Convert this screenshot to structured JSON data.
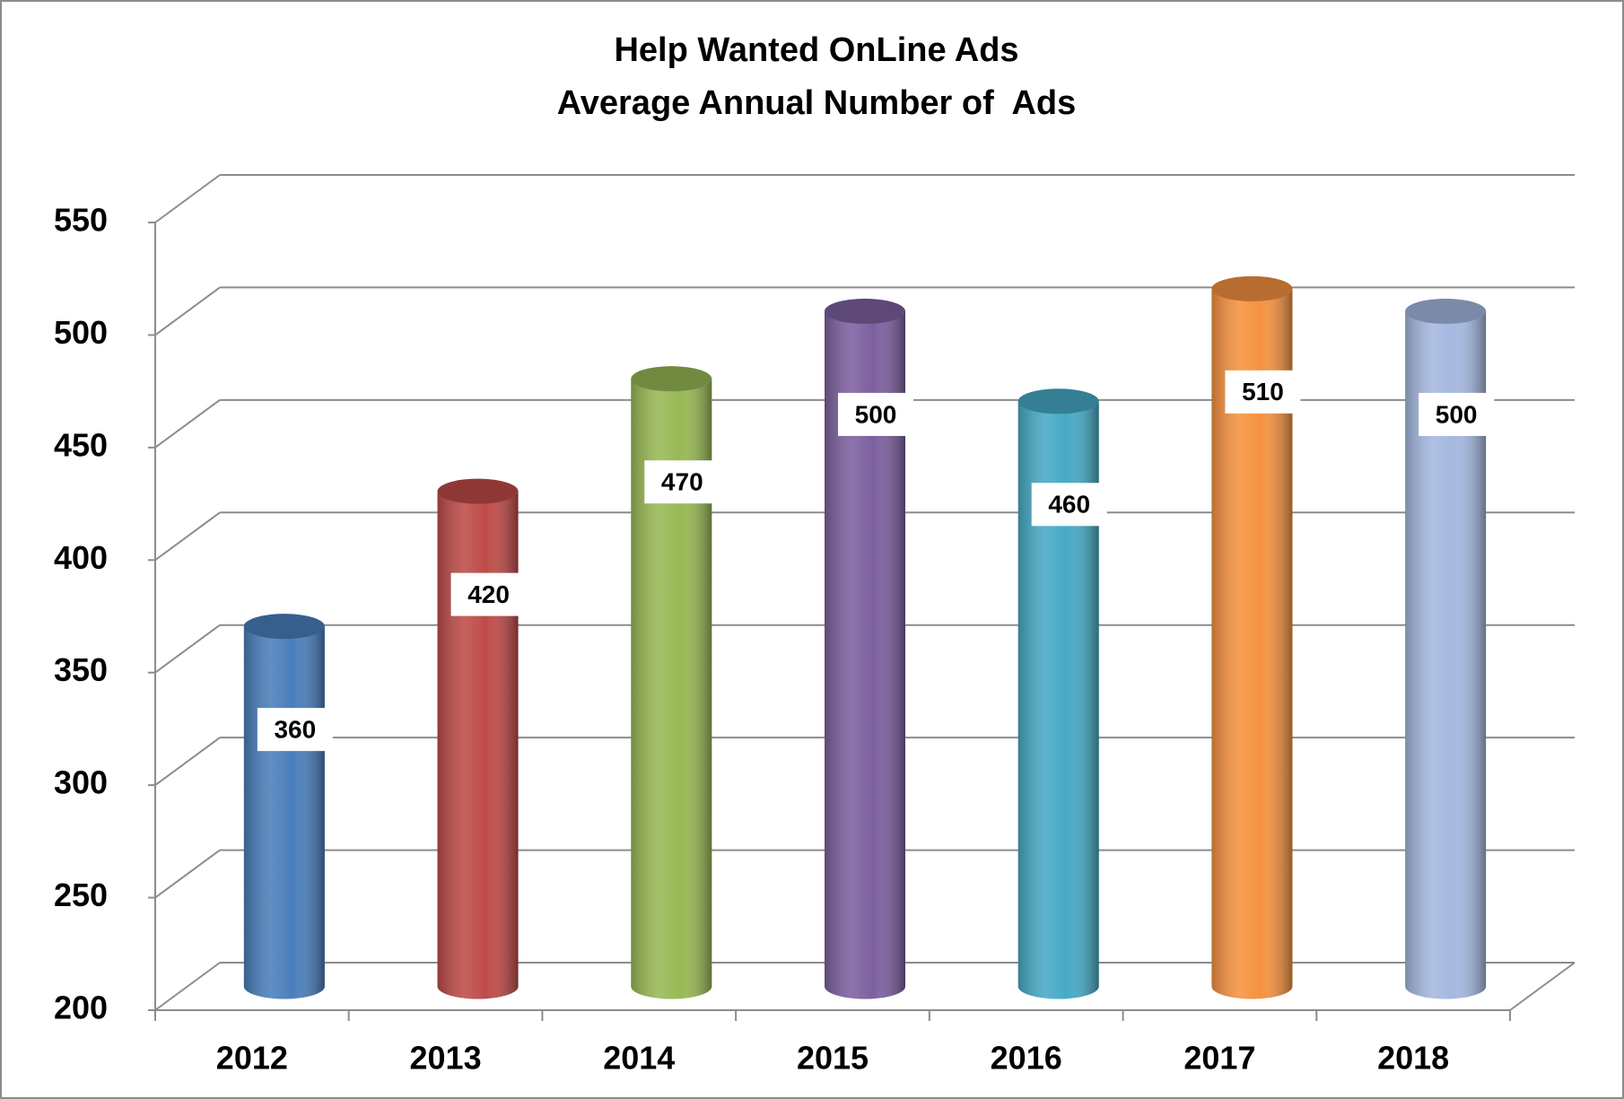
{
  "chart_data": {
    "type": "bar",
    "title": "Help Wanted OnLine Ads",
    "subtitle": "Average Annual Number of  Ads",
    "categories": [
      "2012",
      "2013",
      "2014",
      "2015",
      "2016",
      "2017",
      "2018"
    ],
    "values": [
      360,
      420,
      470,
      500,
      460,
      510,
      500
    ],
    "colors": [
      "#4a7ebb",
      "#be4b48",
      "#98b954",
      "#7d60a0",
      "#46aac5",
      "#f69240",
      "#a5b8e0"
    ],
    "ylim": [
      200,
      550
    ],
    "yticks": [
      200,
      250,
      300,
      350,
      400,
      450,
      500,
      550
    ],
    "grid": true
  }
}
